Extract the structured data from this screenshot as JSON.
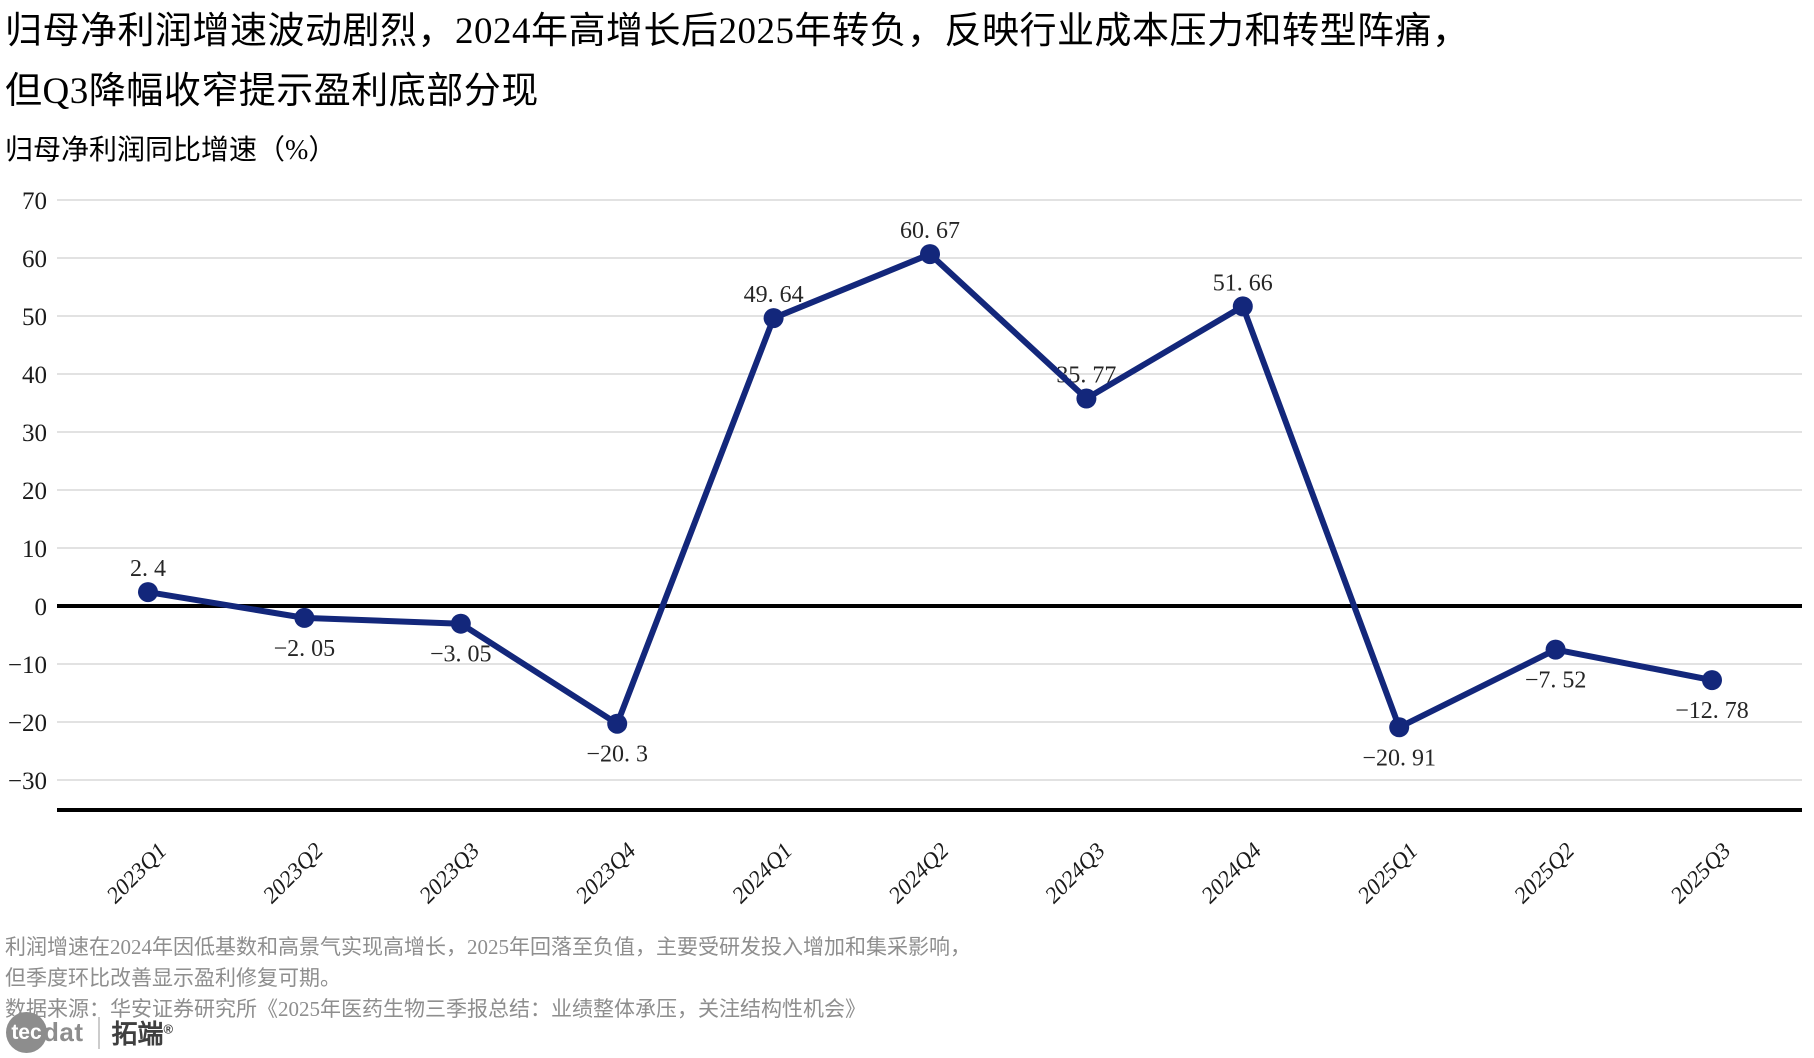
{
  "title": {
    "line1": "归母净利润增速波动剧烈，2024年高增长后2025年转负，反映行业成本压力和转型阵痛，",
    "line2": "但Q3降幅收窄提示盈利底部分现"
  },
  "subtitle": "归母净利润同比增速（%）",
  "chart_data": {
    "type": "line",
    "title": "归母净利润增速波动剧烈，2024年高增长后2025年转负，反映行业成本压力和转型阵痛，但Q3降幅收窄提示盈利底部分现",
    "subtitle": "归母净利润同比增速（%）",
    "series_name": "归母净利润同比增速(%)",
    "categories": [
      "2023Q1",
      "2023Q2",
      "2023Q3",
      "2023Q4",
      "2024Q1",
      "2024Q2",
      "2024Q3",
      "2024Q4",
      "2025Q1",
      "2025Q2",
      "2025Q3"
    ],
    "values": [
      2.4,
      -2.05,
      -3.05,
      -20.3,
      49.64,
      60.67,
      35.77,
      51.66,
      -20.91,
      -7.52,
      -12.78
    ],
    "point_labels": [
      "2. 4",
      "−2. 05",
      "−3. 05",
      "−20. 3",
      "49. 64",
      "60. 67",
      "35. 77",
      "51. 66",
      "−20. 91",
      "−7. 52",
      "−12. 78"
    ],
    "ylim": [
      -30,
      70
    ],
    "yticks": [
      70,
      60,
      50,
      40,
      30,
      20,
      10,
      0,
      -10,
      -20,
      -30
    ],
    "ytick_labels": [
      "70",
      "60",
      "50",
      "40",
      "30",
      "20",
      "10",
      "0",
      "−10",
      "−20",
      "−30"
    ],
    "grid": true,
    "legend": "none",
    "zero_line": true,
    "line_color": "#13277b",
    "marker_color": "#13277b",
    "grid_color": "#d8d8d8",
    "axis_color": "#000000"
  },
  "footer": {
    "note1": "利润增速在2024年因低基数和高景气实现高增长，2025年回落至负值，主要受研发投入增加和集采影响，",
    "note2": "但季度环比改善显示盈利修复可期。",
    "source": "数据来源：华安证券研究所《2025年医药生物三季报总结：业绩整体承压，关注结构性机会》"
  },
  "logo": {
    "tec": "tec",
    "dat": "dat",
    "brand": "拓端",
    "reg": "®"
  }
}
